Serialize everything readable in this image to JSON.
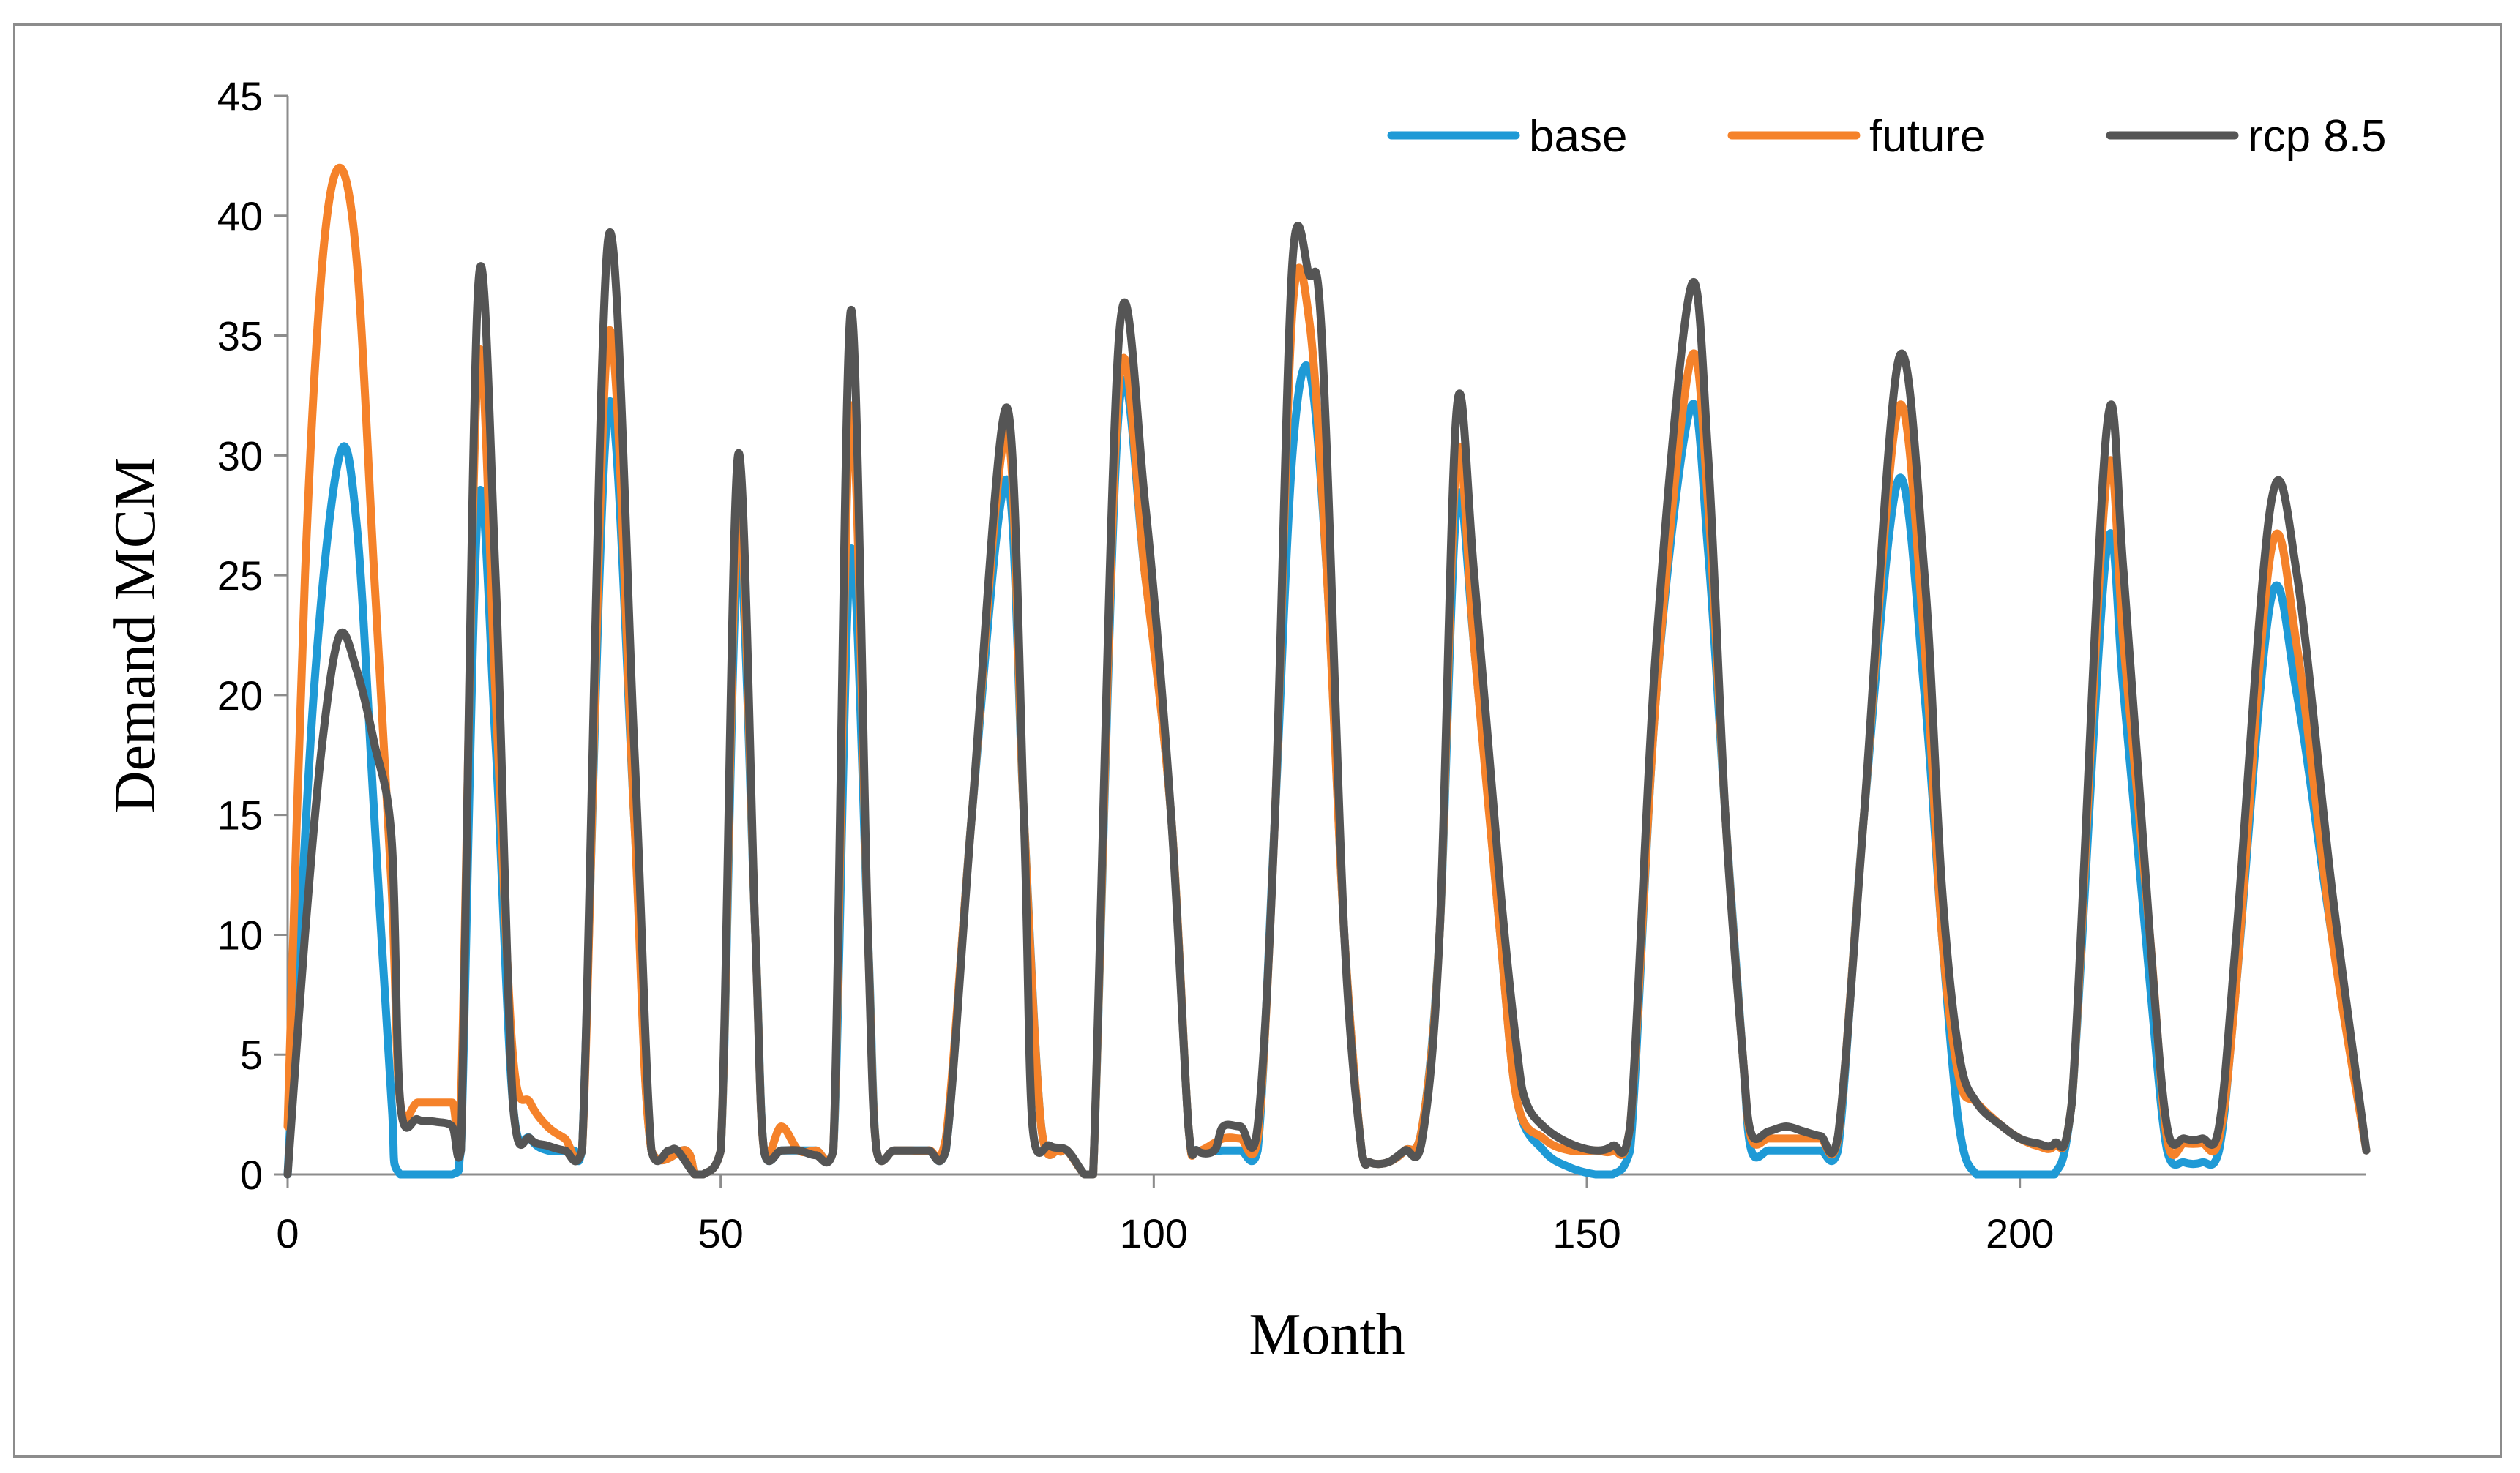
{
  "chart_data": {
    "type": "line",
    "title": "",
    "xlabel": "Month",
    "ylabel": "Demand MCM",
    "xlim": [
      0,
      240
    ],
    "ylim": [
      0,
      45
    ],
    "xticks": [
      0,
      50,
      100,
      150,
      200
    ],
    "yticks": [
      0,
      5,
      10,
      15,
      20,
      25,
      30,
      35,
      40,
      45
    ],
    "grid": false,
    "legend_position": "top-right",
    "series": [
      {
        "name": "base",
        "color": "#1f9ad6",
        "points": [
          [
            0,
            0
          ],
          [
            3,
            20
          ],
          [
            6,
            30
          ],
          [
            8,
            27
          ],
          [
            10,
            15
          ],
          [
            12,
            3
          ],
          [
            13,
            0
          ],
          [
            19,
            0
          ],
          [
            20,
            1
          ],
          [
            22,
            28
          ],
          [
            24,
            18
          ],
          [
            26,
            3
          ],
          [
            28,
            1.5
          ],
          [
            30,
            1
          ],
          [
            33,
            1
          ],
          [
            34,
            1
          ],
          [
            37,
            32
          ],
          [
            40,
            15
          ],
          [
            42,
            1
          ],
          [
            46,
            1
          ],
          [
            47,
            0
          ],
          [
            48,
            0
          ],
          [
            50,
            1
          ],
          [
            52,
            26
          ],
          [
            54,
            10
          ],
          [
            55,
            1
          ],
          [
            57,
            1
          ],
          [
            59,
            1
          ],
          [
            61,
            1
          ],
          [
            63,
            1
          ],
          [
            65,
            26
          ],
          [
            67,
            10
          ],
          [
            68,
            1
          ],
          [
            70,
            1
          ],
          [
            72,
            1
          ],
          [
            74,
            1
          ],
          [
            76,
            1
          ],
          [
            79,
            15
          ],
          [
            83,
            29
          ],
          [
            85,
            15
          ],
          [
            87,
            2
          ],
          [
            89,
            1
          ],
          [
            90,
            1
          ],
          [
            92,
            0
          ],
          [
            93,
            0
          ],
          [
            96,
            32
          ],
          [
            99,
            25
          ],
          [
            102,
            15
          ],
          [
            104,
            2
          ],
          [
            105,
            1
          ],
          [
            108,
            1
          ],
          [
            110,
            1
          ],
          [
            112,
            1
          ],
          [
            114,
            15
          ],
          [
            116,
            30
          ],
          [
            118,
            33.5
          ],
          [
            120,
            25
          ],
          [
            122,
            10
          ],
          [
            124,
            1
          ],
          [
            125,
            0.5
          ],
          [
            127,
            0.5
          ],
          [
            129,
            1
          ],
          [
            131,
            2
          ],
          [
            133,
            10
          ],
          [
            135,
            28
          ],
          [
            137,
            22
          ],
          [
            140,
            10
          ],
          [
            142,
            3
          ],
          [
            145,
            1
          ],
          [
            148,
            0.3
          ],
          [
            151,
            0
          ],
          [
            153,
            0
          ],
          [
            155,
            1
          ],
          [
            158,
            20
          ],
          [
            162,
            32
          ],
          [
            164,
            26
          ],
          [
            166,
            15
          ],
          [
            168,
            5
          ],
          [
            169,
            1
          ],
          [
            171,
            1
          ],
          [
            173,
            1
          ],
          [
            175,
            1
          ],
          [
            177,
            1
          ],
          [
            179,
            1
          ],
          [
            182,
            15
          ],
          [
            186,
            29
          ],
          [
            189,
            20
          ],
          [
            191,
            10
          ],
          [
            193,
            2
          ],
          [
            195,
            0
          ],
          [
            198,
            0
          ],
          [
            200,
            0
          ],
          [
            202,
            0
          ],
          [
            204,
            0
          ],
          [
            206,
            3
          ],
          [
            210,
            26
          ],
          [
            212,
            20
          ],
          [
            215,
            8
          ],
          [
            217,
            1
          ],
          [
            219,
            0.5
          ],
          [
            221,
            0.5
          ],
          [
            223,
            1
          ],
          [
            225,
            8
          ],
          [
            229,
            24
          ],
          [
            232,
            20
          ],
          [
            236,
            10
          ],
          [
            240,
            1
          ]
        ]
      },
      {
        "name": "future",
        "color": "#f5822a",
        "points": [
          [
            0,
            2
          ],
          [
            2,
            25
          ],
          [
            4,
            38
          ],
          [
            6,
            42
          ],
          [
            8,
            38
          ],
          [
            10,
            25
          ],
          [
            12,
            12
          ],
          [
            13,
            3
          ],
          [
            15,
            3
          ],
          [
            17,
            3
          ],
          [
            19,
            3
          ],
          [
            20,
            3
          ],
          [
            22,
            34
          ],
          [
            24,
            20
          ],
          [
            26,
            5
          ],
          [
            28,
            3
          ],
          [
            30,
            2
          ],
          [
            32,
            1.5
          ],
          [
            34,
            1
          ],
          [
            37,
            35
          ],
          [
            40,
            15
          ],
          [
            42,
            1
          ],
          [
            46,
            1
          ],
          [
            47,
            0
          ],
          [
            48,
            0
          ],
          [
            50,
            1
          ],
          [
            52,
            28
          ],
          [
            54,
            10
          ],
          [
            55,
            1
          ],
          [
            57,
            2
          ],
          [
            59,
            1
          ],
          [
            61,
            1
          ],
          [
            63,
            1
          ],
          [
            65,
            32
          ],
          [
            67,
            10
          ],
          [
            68,
            1
          ],
          [
            70,
            1
          ],
          [
            72,
            1
          ],
          [
            74,
            1
          ],
          [
            76,
            1.5
          ],
          [
            79,
            15
          ],
          [
            83,
            31
          ],
          [
            85,
            15
          ],
          [
            87,
            2
          ],
          [
            89,
            1
          ],
          [
            90,
            1
          ],
          [
            92,
            0
          ],
          [
            93,
            0
          ],
          [
            96,
            33
          ],
          [
            99,
            25
          ],
          [
            102,
            15
          ],
          [
            104,
            2
          ],
          [
            105,
            1
          ],
          [
            108,
            1.5
          ],
          [
            110,
            1.5
          ],
          [
            112,
            1.5
          ],
          [
            114,
            15
          ],
          [
            116,
            36
          ],
          [
            118,
            35.5
          ],
          [
            120,
            25
          ],
          [
            122,
            10
          ],
          [
            124,
            1
          ],
          [
            125,
            0.5
          ],
          [
            127,
            0.5
          ],
          [
            129,
            1
          ],
          [
            131,
            2
          ],
          [
            133,
            10
          ],
          [
            135,
            30
          ],
          [
            137,
            22
          ],
          [
            140,
            10
          ],
          [
            142,
            3
          ],
          [
            145,
            1.5
          ],
          [
            148,
            1
          ],
          [
            151,
            1
          ],
          [
            153,
            1
          ],
          [
            155,
            2
          ],
          [
            158,
            20
          ],
          [
            162,
            34
          ],
          [
            164,
            28
          ],
          [
            166,
            15
          ],
          [
            168,
            5
          ],
          [
            169,
            1.5
          ],
          [
            171,
            1.5
          ],
          [
            173,
            1.5
          ],
          [
            175,
            1.5
          ],
          [
            177,
            1.5
          ],
          [
            179,
            1.5
          ],
          [
            182,
            15
          ],
          [
            186,
            32
          ],
          [
            189,
            22
          ],
          [
            191,
            10
          ],
          [
            193,
            4
          ],
          [
            195,
            3
          ],
          [
            198,
            2
          ],
          [
            200,
            1.5
          ],
          [
            202,
            1.2
          ],
          [
            204,
            1.2
          ],
          [
            206,
            3
          ],
          [
            210,
            29
          ],
          [
            212,
            22
          ],
          [
            215,
            10
          ],
          [
            217,
            1.5
          ],
          [
            219,
            1.3
          ],
          [
            221,
            1.3
          ],
          [
            223,
            1.5
          ],
          [
            225,
            8
          ],
          [
            229,
            26
          ],
          [
            232,
            22
          ],
          [
            236,
            10
          ],
          [
            240,
            1
          ]
        ]
      },
      {
        "name": "rcp 8.5",
        "color": "#555555",
        "points": [
          [
            0,
            0
          ],
          [
            2,
            10
          ],
          [
            4,
            18
          ],
          [
            6,
            22.5
          ],
          [
            8,
            21
          ],
          [
            10,
            18
          ],
          [
            12,
            14
          ],
          [
            13,
            3
          ],
          [
            15,
            2.3
          ],
          [
            17,
            2.2
          ],
          [
            19,
            2
          ],
          [
            20,
            1
          ],
          [
            22,
            37
          ],
          [
            24,
            25
          ],
          [
            26,
            3
          ],
          [
            28,
            1.5
          ],
          [
            30,
            1.2
          ],
          [
            32,
            1
          ],
          [
            34,
            1
          ],
          [
            37,
            39
          ],
          [
            40,
            18
          ],
          [
            42,
            1
          ],
          [
            44,
            1
          ],
          [
            45,
            1
          ],
          [
            47,
            0
          ],
          [
            48,
            0
          ],
          [
            50,
            1
          ],
          [
            52,
            30
          ],
          [
            54,
            10
          ],
          [
            55,
            1
          ],
          [
            57,
            1
          ],
          [
            59,
            1
          ],
          [
            61,
            0.8
          ],
          [
            63,
            1
          ],
          [
            65,
            36
          ],
          [
            67,
            10
          ],
          [
            68,
            1
          ],
          [
            70,
            1
          ],
          [
            72,
            1
          ],
          [
            74,
            1
          ],
          [
            76,
            1
          ],
          [
            79,
            15
          ],
          [
            83,
            32
          ],
          [
            85,
            15
          ],
          [
            86,
            2
          ],
          [
            88,
            1.2
          ],
          [
            90,
            1
          ],
          [
            92,
            0
          ],
          [
            93,
            0
          ],
          [
            96,
            35
          ],
          [
            99,
            28
          ],
          [
            102,
            15
          ],
          [
            104,
            2
          ],
          [
            105,
            1
          ],
          [
            107,
            1
          ],
          [
            108,
            2
          ],
          [
            110,
            2
          ],
          [
            112,
            2
          ],
          [
            114,
            15
          ],
          [
            116,
            38
          ],
          [
            118,
            37.5
          ],
          [
            119,
            37
          ],
          [
            120,
            30
          ],
          [
            122,
            10
          ],
          [
            124,
            1
          ],
          [
            125,
            0.5
          ],
          [
            127,
            0.5
          ],
          [
            129,
            1
          ],
          [
            131,
            1.5
          ],
          [
            133,
            10
          ],
          [
            135,
            32
          ],
          [
            137,
            25
          ],
          [
            140,
            12
          ],
          [
            142,
            5
          ],
          [
            143,
            3
          ],
          [
            145,
            2
          ],
          [
            148,
            1.3
          ],
          [
            151,
            1
          ],
          [
            153,
            1.2
          ],
          [
            155,
            2
          ],
          [
            158,
            22
          ],
          [
            162,
            37
          ],
          [
            164,
            30
          ],
          [
            166,
            15
          ],
          [
            168,
            5
          ],
          [
            169,
            1.7
          ],
          [
            171,
            1.8
          ],
          [
            173,
            2
          ],
          [
            175,
            1.8
          ],
          [
            177,
            1.6
          ],
          [
            179,
            1.6
          ],
          [
            182,
            15
          ],
          [
            186,
            34
          ],
          [
            189,
            25
          ],
          [
            191,
            12
          ],
          [
            193,
            5
          ],
          [
            195,
            3
          ],
          [
            198,
            2
          ],
          [
            200,
            1.5
          ],
          [
            202,
            1.3
          ],
          [
            204,
            1.3
          ],
          [
            206,
            3
          ],
          [
            210,
            31
          ],
          [
            212,
            25
          ],
          [
            215,
            10
          ],
          [
            217,
            2
          ],
          [
            219,
            1.5
          ],
          [
            221,
            1.5
          ],
          [
            223,
            2
          ],
          [
            225,
            10
          ],
          [
            229,
            28
          ],
          [
            232,
            25
          ],
          [
            236,
            12
          ],
          [
            240,
            1
          ]
        ]
      }
    ]
  }
}
